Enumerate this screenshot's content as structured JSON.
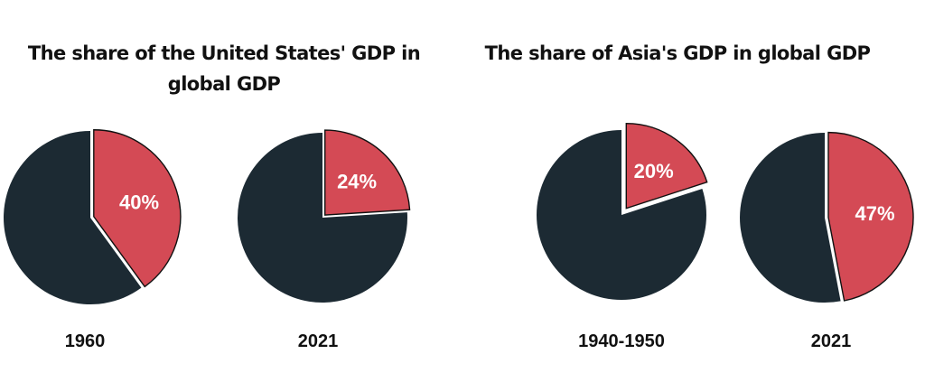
{
  "panels": [
    {
      "title": "The share of the United States' GDP in global GDP"
    },
    {
      "title": "The share of Asia's GDP in global GDP"
    }
  ],
  "colors": {
    "share": "#D44A55",
    "rest": "#1C2A33",
    "outline": "#111111"
  },
  "chart_data": [
    {
      "type": "pie",
      "panel": 0,
      "year": "1960",
      "share_label": "40%",
      "share": 40,
      "rest": 60
    },
    {
      "type": "pie",
      "panel": 0,
      "year": "2021",
      "share_label": "24%",
      "share": 24,
      "rest": 76
    },
    {
      "type": "pie",
      "panel": 1,
      "year": "1940-1950",
      "share_label": "20%",
      "share": 20,
      "rest": 80
    },
    {
      "type": "pie",
      "panel": 1,
      "year": "2021",
      "share_label": "47%",
      "share": 47,
      "rest": 53
    }
  ]
}
